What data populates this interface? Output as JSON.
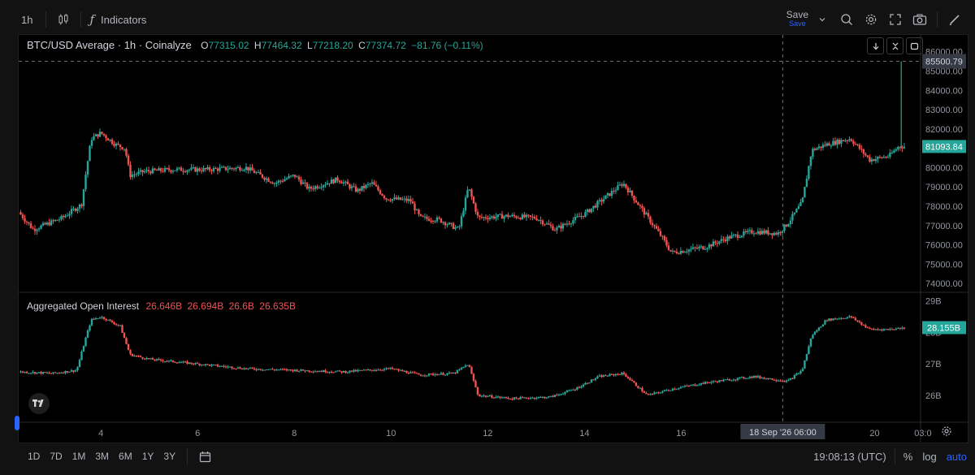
{
  "topbar": {
    "interval": "1h",
    "indicators_label": "Indicators",
    "save_label": "Save",
    "save_sub": "Save"
  },
  "main_legend": {
    "title": "BTC/USD Average · 1h · Coinalyze",
    "o_label": "O",
    "o_value": "77315.02",
    "h_label": "H",
    "h_value": "77464.32",
    "l_label": "L",
    "l_value": "77218.20",
    "c_label": "C",
    "c_value": "77374.72",
    "change": "−81.76 (−0.11%)"
  },
  "oi_legend": {
    "title": "Aggregated Open Interest",
    "values": [
      "26.646B",
      "26.694B",
      "26.6B",
      "26.635B"
    ]
  },
  "bottombar": {
    "ranges": [
      "1D",
      "7D",
      "1M",
      "3M",
      "6M",
      "1Y",
      "3Y"
    ],
    "clock": "19:08:13 (UTC)",
    "percent": "%",
    "log": "log",
    "auto": "auto"
  },
  "colors": {
    "up": "#26a69a",
    "down": "#ef5350",
    "accent": "#2962ff",
    "bg": "#000000",
    "text": "#b2b5be"
  },
  "chart_data": [
    {
      "type": "candlestick",
      "title": "BTC/USD Average · 1h · Coinalyze",
      "x_ticks": [
        "4",
        "6",
        "8",
        "10",
        "12",
        "14",
        "16",
        "20",
        "03:0"
      ],
      "y_ticks": [
        "86000.00",
        "85000.00",
        "84000.00",
        "83000.00",
        "82000.00",
        "81000.00",
        "80000.00",
        "79000.00",
        "78000.00",
        "77000.00",
        "76000.00",
        "75000.00",
        "74000.00"
      ],
      "ylim": [
        73800,
        86700
      ],
      "last_price_label": "81093.84",
      "crosshair_price_label": "85500.79",
      "crosshair_time_label": "18 Sep '26  06:00",
      "path": [
        [
          2.3,
          77700
        ],
        [
          2.6,
          76800
        ],
        [
          3.2,
          77400
        ],
        [
          3.6,
          78100
        ],
        [
          3.7,
          79900
        ],
        [
          3.8,
          81500
        ],
        [
          4.0,
          81800
        ],
        [
          4.3,
          81200
        ],
        [
          4.5,
          81000
        ],
        [
          4.6,
          79600
        ],
        [
          4.9,
          79800
        ],
        [
          5.5,
          79900
        ],
        [
          6.2,
          79900
        ],
        [
          7.0,
          80000
        ],
        [
          7.6,
          79200
        ],
        [
          8.0,
          79600
        ],
        [
          8.3,
          78900
        ],
        [
          8.9,
          79400
        ],
        [
          9.3,
          78800
        ],
        [
          9.6,
          79200
        ],
        [
          9.9,
          78400
        ],
        [
          10.4,
          78300
        ],
        [
          10.6,
          77400
        ],
        [
          11.0,
          77300
        ],
        [
          11.4,
          76800
        ],
        [
          11.6,
          79000
        ],
        [
          11.8,
          77400
        ],
        [
          12.4,
          77500
        ],
        [
          13.0,
          77400
        ],
        [
          13.4,
          76800
        ],
        [
          14.0,
          77600
        ],
        [
          14.5,
          78600
        ],
        [
          14.8,
          79200
        ],
        [
          15.2,
          77800
        ],
        [
          15.6,
          76400
        ],
        [
          15.8,
          75600
        ],
        [
          16.5,
          75900
        ],
        [
          17.0,
          76400
        ],
        [
          17.5,
          76700
        ],
        [
          18.0,
          76600
        ],
        [
          18.2,
          77100
        ],
        [
          18.5,
          78200
        ],
        [
          18.7,
          80900
        ],
        [
          19.0,
          81200
        ],
        [
          19.5,
          81500
        ],
        [
          19.9,
          80400
        ],
        [
          20.3,
          80600
        ],
        [
          20.5,
          81100
        ]
      ],
      "spike": {
        "x": 20.55,
        "high": 85500.79,
        "low": 81000
      }
    },
    {
      "type": "candlestick",
      "title": "Aggregated Open Interest",
      "y_ticks": [
        "29B",
        "28B",
        "27B",
        "26B"
      ],
      "ylim": [
        25.25,
        29.2
      ],
      "last_value_label": "28.155B",
      "path": [
        [
          2.3,
          26.75
        ],
        [
          3.0,
          26.7
        ],
        [
          3.5,
          26.8
        ],
        [
          3.7,
          27.9
        ],
        [
          3.8,
          28.4
        ],
        [
          4.0,
          28.5
        ],
        [
          4.4,
          28.2
        ],
        [
          4.6,
          27.3
        ],
        [
          5.0,
          27.15
        ],
        [
          6.0,
          27.0
        ],
        [
          7.0,
          26.85
        ],
        [
          8.0,
          26.8
        ],
        [
          9.0,
          26.75
        ],
        [
          10.0,
          26.85
        ],
        [
          10.6,
          26.65
        ],
        [
          11.3,
          26.7
        ],
        [
          11.6,
          27.0
        ],
        [
          11.8,
          26.0
        ],
        [
          12.5,
          25.9
        ],
        [
          13.3,
          25.95
        ],
        [
          13.8,
          26.2
        ],
        [
          14.3,
          26.6
        ],
        [
          14.8,
          26.7
        ],
        [
          15.3,
          26.0
        ],
        [
          15.8,
          26.2
        ],
        [
          16.5,
          26.4
        ],
        [
          17.5,
          26.6
        ],
        [
          18.2,
          26.45
        ],
        [
          18.5,
          26.8
        ],
        [
          18.7,
          27.9
        ],
        [
          19.0,
          28.4
        ],
        [
          19.5,
          28.5
        ],
        [
          19.9,
          28.1
        ],
        [
          20.3,
          28.1
        ],
        [
          20.6,
          28.15
        ]
      ]
    }
  ]
}
